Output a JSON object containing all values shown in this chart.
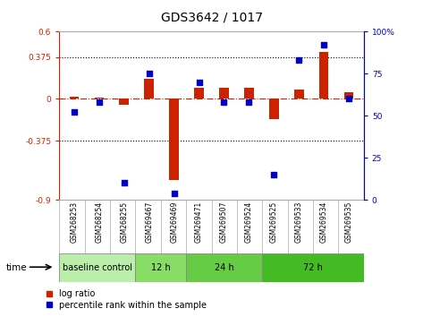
{
  "title": "GDS3642 / 1017",
  "samples": [
    "GSM268253",
    "GSM268254",
    "GSM268255",
    "GSM269467",
    "GSM269469",
    "GSM269471",
    "GSM269507",
    "GSM269524",
    "GSM269525",
    "GSM269533",
    "GSM269534",
    "GSM269535"
  ],
  "log_ratio": [
    0.02,
    0.01,
    -0.05,
    0.18,
    -0.72,
    0.1,
    0.1,
    0.1,
    -0.18,
    0.08,
    0.42,
    0.06
  ],
  "percentile_rank": [
    52,
    58,
    10,
    75,
    4,
    70,
    58,
    58,
    15,
    83,
    92,
    60
  ],
  "groups": [
    {
      "label": "baseline control",
      "start": 0,
      "end": 3,
      "color": "#bbeeaa"
    },
    {
      "label": "12 h",
      "start": 3,
      "end": 5,
      "color": "#88dd66"
    },
    {
      "label": "24 h",
      "start": 5,
      "end": 8,
      "color": "#66cc44"
    },
    {
      "label": "72 h",
      "start": 8,
      "end": 12,
      "color": "#44bb22"
    }
  ],
  "ylim_left": [
    -0.9,
    0.6
  ],
  "ylim_right": [
    0,
    100
  ],
  "yticks_left": [
    -0.9,
    -0.375,
    0.0,
    0.375,
    0.6
  ],
  "yticks_right": [
    0,
    25,
    50,
    75,
    100
  ],
  "ytick_labels_left": [
    "-0.9",
    "-0.375",
    "0",
    "0.375",
    "0.6"
  ],
  "ytick_labels_right": [
    "0",
    "25",
    "50",
    "75",
    "100%"
  ],
  "hlines": [
    0.375,
    -0.375
  ],
  "bar_color": "#cc2200",
  "dot_color": "#0000cc",
  "zero_line_color": "#cc2200",
  "background_color": "#ffffff"
}
